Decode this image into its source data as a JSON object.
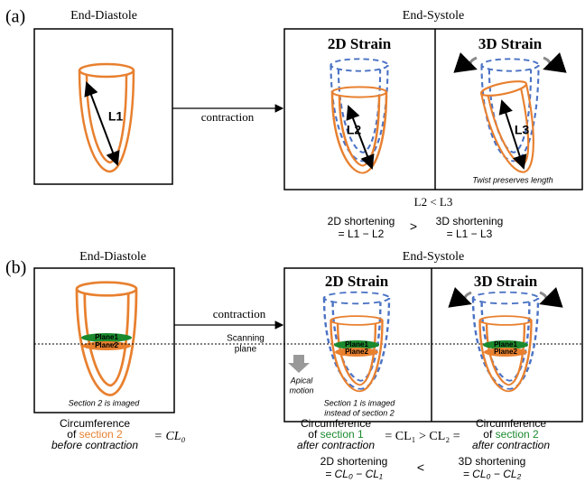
{
  "panel_a": {
    "label": "(a)",
    "end_diastole": {
      "title": "End-Diastole",
      "length": "L1"
    },
    "arrow": "contraction",
    "end_systole": {
      "title": "End-Systole",
      "strain_2d": {
        "title": "2D Strain",
        "length": "L2"
      },
      "strain_3d": {
        "title": "3D Strain",
        "length": "L3",
        "note": "Twist preserves length"
      }
    },
    "comparison": "L2 < L3",
    "shortening": {
      "strain_2d": [
        "2D shortening",
        "= L1 − L2"
      ],
      "operator": ">",
      "strain_3d": [
        "3D shortening",
        "= L1 − L3"
      ]
    }
  },
  "panel_b": {
    "label": "(b)",
    "end_diastole": {
      "title": "End-Diastole",
      "planes": [
        "Plane1",
        "Plane2"
      ],
      "note": "Section 2 is imaged"
    },
    "arrow": "contraction",
    "scanning_plane": [
      "Scanning",
      "plane"
    ],
    "end_systole": {
      "title": "End-Systole",
      "strain_2d": {
        "title": "2D Strain",
        "planes": [
          "Plane1",
          "Plane2"
        ],
        "apical_motion": [
          "Apical",
          "motion"
        ],
        "note": [
          "Section 1 is imaged",
          "instead of section 2"
        ]
      },
      "strain_3d": {
        "title": "3D Strain",
        "planes": [
          "Plane1",
          "Plane2"
        ]
      }
    },
    "before": {
      "line1": "Circumference",
      "of": "of",
      "section": "section 2",
      "line3": "before contraction",
      "equation": "= CL₀"
    },
    "after": {
      "section_1": {
        "line1": "Circumference",
        "of": "of",
        "section": "section 1",
        "line3": "after contraction"
      },
      "equation": "= CL₁ > CL₂ =",
      "section_2": {
        "line1": "Circumference",
        "of": "of",
        "section": "section 2",
        "line3": "after contraction"
      }
    },
    "shortening": {
      "strain_2d": [
        "2D shortening",
        "= CL₀ − CL₁"
      ],
      "operator": "<",
      "strain_3d": [
        "3D shortening",
        "= CL₀ − CL₂"
      ]
    }
  }
}
